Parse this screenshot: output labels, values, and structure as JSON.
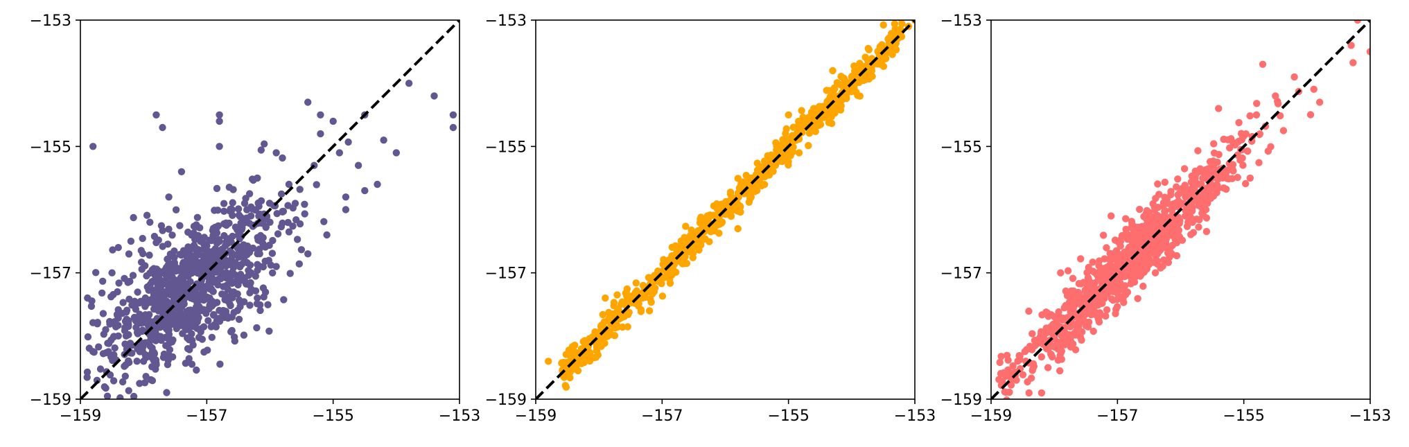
{
  "colors": {
    "panel_1": "#625790",
    "panel_2": "#ffa500",
    "panel_3": "#ff6e6e",
    "diagonal": "#000000"
  },
  "chart_data": [
    {
      "type": "scatter",
      "title": "",
      "xlabel": "",
      "ylabel": "",
      "xlim": [
        -159,
        -153
      ],
      "ylim": [
        -159,
        -153
      ],
      "xticks": [
        "−159",
        "−157",
        "−155",
        "−153"
      ],
      "yticks": [
        "−159",
        "−157",
        "−155",
        "−153"
      ],
      "grid": false,
      "reference_line": {
        "style": "dashed",
        "x": [
          -159,
          -153
        ],
        "y": [
          -159,
          -153
        ]
      },
      "color": "#625790",
      "spread": "wide",
      "points": [
        [
          -158.8,
          -155.0
        ],
        [
          -157.8,
          -154.5
        ],
        [
          -157.7,
          -154.7
        ],
        [
          -156.8,
          -154.5
        ],
        [
          -156.8,
          -154.6
        ],
        [
          -155.4,
          -154.3
        ],
        [
          -155.2,
          -154.5
        ],
        [
          -155.0,
          -154.6
        ],
        [
          -154.5,
          -154.5
        ],
        [
          -154.2,
          -154.9
        ],
        [
          -154.0,
          -155.1
        ],
        [
          -153.8,
          -154.0
        ],
        [
          -153.4,
          -154.2
        ],
        [
          -153.1,
          -154.5
        ],
        [
          -153.1,
          -154.7
        ],
        [
          -157.1,
          -156.5
        ],
        [
          -157.3,
          -156.7
        ],
        [
          -156.6,
          -156.0
        ],
        [
          -156.4,
          -155.9
        ],
        [
          -155.2,
          -154.8
        ],
        [
          -158.5,
          -157.0
        ],
        [
          -158.4,
          -156.6
        ],
        [
          -158.2,
          -156.5
        ],
        [
          -157.9,
          -156.2
        ],
        [
          -157.6,
          -155.8
        ],
        [
          -157.4,
          -155.4
        ],
        [
          -156.8,
          -155.0
        ],
        [
          -156.2,
          -155.5
        ],
        [
          -155.9,
          -155.1
        ],
        [
          -155.6,
          -155.9
        ],
        [
          -154.8,
          -155.8
        ],
        [
          -154.6,
          -155.3
        ],
        [
          -154.3,
          -155.6
        ],
        [
          -156.3,
          -157.0
        ],
        [
          -155.9,
          -156.9
        ],
        [
          -155.4,
          -156.7
        ],
        [
          -155.1,
          -156.4
        ],
        [
          -154.8,
          -156.0
        ],
        [
          -154.5,
          -155.7
        ],
        [
          -158.0,
          -158.4
        ],
        [
          -157.6,
          -158.3
        ],
        [
          -157.3,
          -158.2
        ],
        [
          -156.6,
          -157.7
        ],
        [
          -156.2,
          -157.4
        ],
        [
          -158.6,
          -157.9
        ],
        [
          -158.4,
          -158.0
        ],
        [
          -157.9,
          -157.2
        ],
        [
          -157.5,
          -156.9
        ],
        [
          -157.2,
          -157.3
        ],
        [
          -156.9,
          -157.1
        ],
        [
          -156.5,
          -156.4
        ],
        [
          -156.0,
          -156.2
        ],
        [
          -155.7,
          -155.6
        ],
        [
          -155.3,
          -155.3
        ],
        [
          -154.9,
          -155.1
        ],
        [
          -157.7,
          -157.6
        ],
        [
          -157.4,
          -157.5
        ],
        [
          -157.1,
          -157.0
        ],
        [
          -156.7,
          -156.8
        ],
        [
          -156.3,
          -156.1
        ]
      ]
    },
    {
      "type": "scatter",
      "title": "",
      "xlabel": "",
      "ylabel": "",
      "xlim": [
        -159,
        -153
      ],
      "ylim": [
        -159,
        -153
      ],
      "xticks": [
        "−159",
        "−157",
        "−155",
        "−153"
      ],
      "yticks": [
        "−159",
        "−157",
        "−155",
        "−153"
      ],
      "grid": false,
      "reference_line": {
        "style": "dashed",
        "x": [
          -159,
          -153
        ],
        "y": [
          -159,
          -153
        ]
      },
      "color": "#ffa500",
      "spread": "tight",
      "points": [
        [
          -158.8,
          -158.4
        ],
        [
          -158.5,
          -158.6
        ],
        [
          -158.3,
          -158.3
        ],
        [
          -158.0,
          -158.0
        ],
        [
          -157.7,
          -157.6
        ],
        [
          -157.3,
          -157.2
        ],
        [
          -156.9,
          -156.8
        ],
        [
          -156.5,
          -156.4
        ],
        [
          -156.1,
          -156.0
        ],
        [
          -155.7,
          -155.6
        ],
        [
          -155.3,
          -155.3
        ],
        [
          -154.9,
          -154.9
        ],
        [
          -154.6,
          -154.5
        ],
        [
          -154.3,
          -154.2
        ],
        [
          -154.0,
          -153.9
        ],
        [
          -153.8,
          -153.8
        ],
        [
          -153.4,
          -153.3
        ],
        [
          -153.1,
          -153.1
        ],
        [
          -153.0,
          -153.0
        ],
        [
          -154.3,
          -153.8
        ],
        [
          -154.6,
          -154.4
        ],
        [
          -155.0,
          -154.5
        ],
        [
          -157.9,
          -157.4
        ],
        [
          -157.2,
          -157.6
        ],
        [
          -155.8,
          -156.3
        ]
      ]
    },
    {
      "type": "scatter",
      "title": "",
      "xlabel": "",
      "ylabel": "",
      "xlim": [
        -159,
        -153
      ],
      "ylim": [
        -159,
        -153
      ],
      "xticks": [
        "−159",
        "−157",
        "−155",
        "−153"
      ],
      "yticks": [
        "−159",
        "−157",
        "−155",
        "−153"
      ],
      "grid": false,
      "reference_line": {
        "style": "dashed",
        "x": [
          -159,
          -153
        ],
        "y": [
          -159,
          -153
        ]
      },
      "color": "#ff6e6e",
      "spread": "medium",
      "points": [
        [
          -158.8,
          -158.6
        ],
        [
          -158.6,
          -158.7
        ],
        [
          -158.4,
          -158.9
        ],
        [
          -158.2,
          -158.9
        ],
        [
          -158.1,
          -158.5
        ],
        [
          -157.9,
          -158.1
        ],
        [
          -157.6,
          -157.7
        ],
        [
          -157.3,
          -157.1
        ],
        [
          -157.0,
          -156.8
        ],
        [
          -156.6,
          -156.4
        ],
        [
          -156.2,
          -155.9
        ],
        [
          -155.8,
          -155.6
        ],
        [
          -155.5,
          -155.3
        ],
        [
          -155.2,
          -154.9
        ],
        [
          -154.8,
          -154.5
        ],
        [
          -154.5,
          -154.2
        ],
        [
          -154.2,
          -153.9
        ],
        [
          -153.8,
          -154.3
        ],
        [
          -153.3,
          -153.4
        ],
        [
          -153.0,
          -153.5
        ],
        [
          -153.2,
          -153.0
        ],
        [
          -154.7,
          -153.7
        ],
        [
          -155.4,
          -154.4
        ],
        [
          -157.1,
          -156.1
        ],
        [
          -157.9,
          -157.0
        ],
        [
          -156.4,
          -157.0
        ],
        [
          -155.6,
          -156.0
        ],
        [
          -154.9,
          -155.5
        ]
      ]
    }
  ]
}
